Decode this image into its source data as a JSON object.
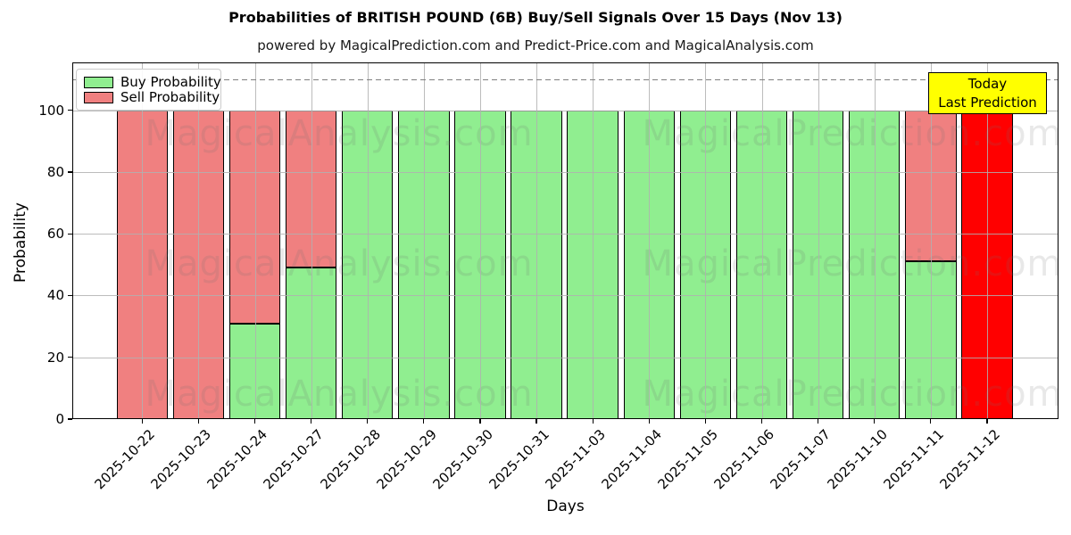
{
  "header": {
    "title": "Probabilities of BRITISH POUND (6B) Buy/Sell Signals Over 15 Days (Nov 13)",
    "subtitle": "powered by MagicalPrediction.com and Predict-Price.com and MagicalAnalysis.com"
  },
  "legend": {
    "buy_label": "Buy Probability",
    "sell_label": "Sell Probability"
  },
  "annotation": {
    "line1": "Today",
    "line2": "Last Prediction"
  },
  "watermarks": {
    "left_text": "MagicalAnalysis.com",
    "right_text": "MagicalPrediction.com"
  },
  "colors": {
    "buy": "#90ee90",
    "sell": "#f08080",
    "today_sell": "#ff0000",
    "bar_edge": "#000000",
    "annotation_bg": "#ffff00",
    "grid": "#b0b0b0",
    "dashed_line": "#7f7f7f"
  },
  "chart_data": {
    "type": "bar",
    "stacked": true,
    "title": "Probabilities of BRITISH POUND (6B) Buy/Sell Signals Over 15 Days (Nov 13)",
    "xlabel": "Days",
    "ylabel": "Probability",
    "ylim": [
      0,
      115.5
    ],
    "yticks": [
      0,
      20,
      40,
      60,
      80,
      100
    ],
    "dashed_line_y": 110,
    "grid": true,
    "legend_position": "upper left",
    "categories": [
      "2025-10-22",
      "2025-10-23",
      "2025-10-24",
      "2025-10-27",
      "2025-10-28",
      "2025-10-29",
      "2025-10-30",
      "2025-10-31",
      "2025-11-03",
      "2025-11-04",
      "2025-11-05",
      "2025-11-06",
      "2025-11-07",
      "2025-11-10",
      "2025-11-11",
      "2025-11-12"
    ],
    "series": [
      {
        "name": "Buy Probability",
        "color": "#90ee90",
        "values": [
          0,
          0,
          31,
          49,
          100,
          100,
          100,
          100,
          100,
          100,
          100,
          100,
          100,
          100,
          51,
          0
        ]
      },
      {
        "name": "Sell Probability",
        "color": "#f08080",
        "values": [
          100,
          100,
          69,
          51,
          0,
          0,
          0,
          0,
          0,
          0,
          0,
          0,
          0,
          0,
          49,
          100
        ]
      }
    ],
    "highlight_index": 15,
    "highlight_color": "#ff0000",
    "highlight_label": "Today Last Prediction"
  }
}
